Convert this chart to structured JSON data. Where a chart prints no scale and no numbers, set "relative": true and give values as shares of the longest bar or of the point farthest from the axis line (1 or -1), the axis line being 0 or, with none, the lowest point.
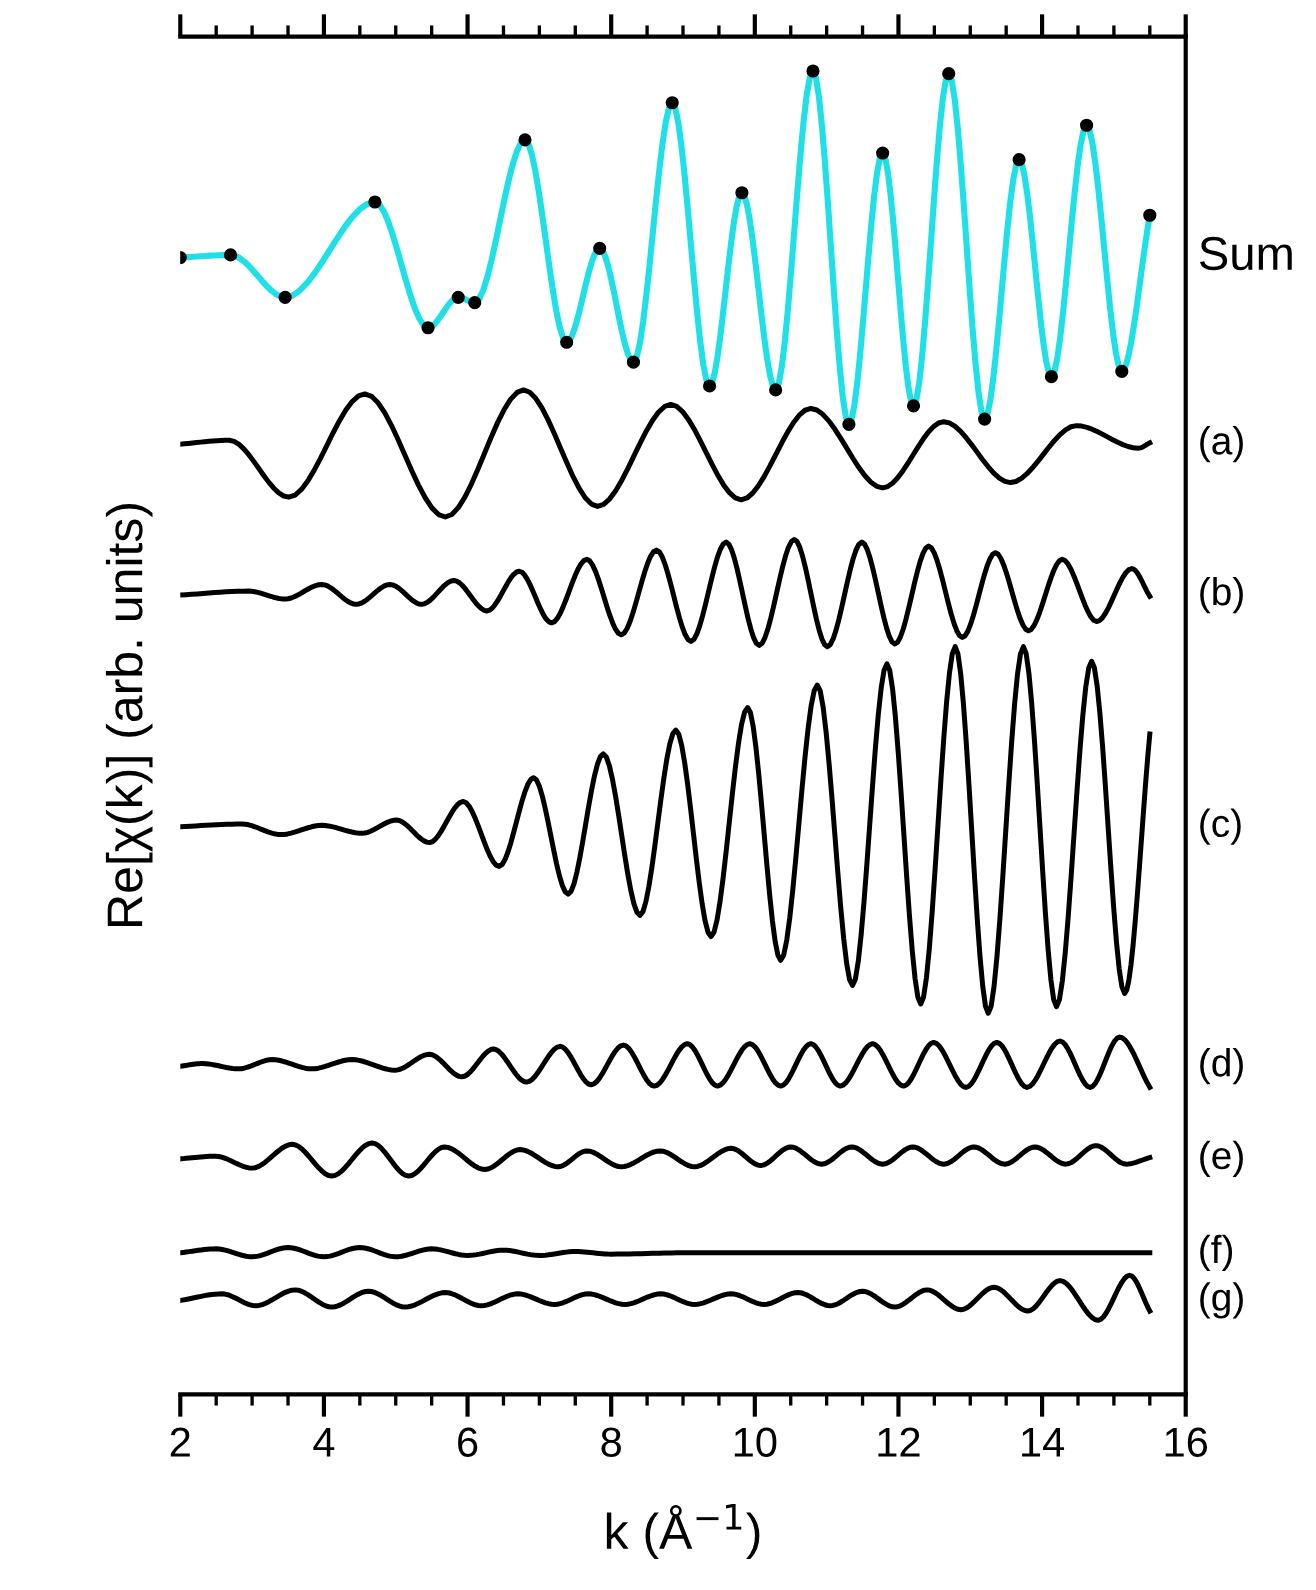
{
  "chart_data": {
    "type": "line",
    "relative": true,
    "xlabel": "k (Å$^{−1}$)",
    "ylabel": "Re[χ(k)] (arb. units)",
    "xlim": [
      2,
      16
    ],
    "xticks": [
      2,
      4,
      6,
      8,
      10,
      12,
      14,
      16
    ],
    "grid": false,
    "legend": false,
    "line_style": "solid",
    "series": [
      {
        "color": "#1fe0e6",
        "x": [
          2.0,
          2.7,
          3.46,
          4.71,
          5.45,
          5.87,
          6.1,
          6.8,
          7.38,
          7.84,
          8.31,
          8.85,
          9.37,
          9.82,
          10.29,
          10.81,
          11.31,
          11.78,
          12.21,
          12.7,
          13.2,
          13.68,
          14.13,
          14.62,
          15.11,
          15.5
        ],
        "values": [
          0.859,
          0.861,
          0.829,
          0.901,
          0.806,
          0.829,
          0.825,
          0.948,
          0.795,
          0.866,
          0.78,
          0.976,
          0.762,
          0.908,
          0.759,
          1.0,
          0.733,
          0.938,
          0.747,
          0.998,
          0.737,
          0.933,
          0.769,
          0.959,
          0.773,
          0.891
        ]
      },
      {
        "type": "scatter",
        "name": "Sum",
        "color": "#000000",
        "marker": "circle",
        "x": [
          2.0,
          2.7,
          3.46,
          4.71,
          5.45,
          5.87,
          6.1,
          6.8,
          7.38,
          7.84,
          8.31,
          8.85,
          9.37,
          9.82,
          10.29,
          10.81,
          11.31,
          11.78,
          12.21,
          12.7,
          13.2,
          13.68,
          14.13,
          14.62,
          15.11,
          15.5
        ],
        "values": [
          0.859,
          0.861,
          0.829,
          0.901,
          0.806,
          0.829,
          0.825,
          0.948,
          0.795,
          0.866,
          0.78,
          0.976,
          0.762,
          0.908,
          0.759,
          1.0,
          0.733,
          0.938,
          0.747,
          0.998,
          0.737,
          0.933,
          0.769,
          0.959,
          0.773,
          0.891
        ]
      },
      {
        "name": "(a)",
        "color": "#000000",
        "x": [
          2.0,
          2.68,
          3.51,
          4.57,
          5.69,
          6.78,
          7.81,
          8.83,
          9.81,
          10.78,
          11.78,
          12.63,
          13.56,
          14.48,
          15.34,
          15.5
        ],
        "values": [
          0.718,
          0.721,
          0.678,
          0.756,
          0.663,
          0.759,
          0.671,
          0.748,
          0.676,
          0.745,
          0.685,
          0.735,
          0.689,
          0.732,
          0.715,
          0.719
        ]
      },
      {
        "name": "(b)",
        "color": "#000000",
        "x": [
          2.0,
          2.95,
          3.46,
          3.97,
          4.45,
          4.92,
          5.36,
          5.81,
          6.27,
          6.72,
          7.17,
          7.66,
          8.14,
          8.63,
          9.11,
          9.6,
          10.06,
          10.55,
          11.01,
          11.49,
          11.95,
          12.42,
          12.89,
          13.35,
          13.81,
          14.28,
          14.76,
          15.25,
          15.5
        ],
        "values": [
          0.604,
          0.607,
          0.601,
          0.612,
          0.597,
          0.612,
          0.597,
          0.615,
          0.592,
          0.622,
          0.583,
          0.631,
          0.574,
          0.638,
          0.569,
          0.644,
          0.566,
          0.646,
          0.565,
          0.644,
          0.567,
          0.641,
          0.572,
          0.636,
          0.577,
          0.631,
          0.584,
          0.624,
          0.603
        ]
      },
      {
        "name": "(c)",
        "color": "#000000",
        "x": [
          2.0,
          2.86,
          3.4,
          3.97,
          4.53,
          5.01,
          5.47,
          5.94,
          6.44,
          6.92,
          7.4,
          7.89,
          8.4,
          8.9,
          9.39,
          9.9,
          10.36,
          10.87,
          11.36,
          11.84,
          12.31,
          12.79,
          13.25,
          13.74,
          14.2,
          14.69,
          15.15,
          15.5
        ],
        "values": [
          0.429,
          0.431,
          0.423,
          0.43,
          0.424,
          0.434,
          0.417,
          0.448,
          0.399,
          0.466,
          0.378,
          0.484,
          0.362,
          0.502,
          0.346,
          0.519,
          0.328,
          0.536,
          0.309,
          0.552,
          0.295,
          0.565,
          0.288,
          0.565,
          0.293,
          0.554,
          0.303,
          0.499
        ]
      },
      {
        "name": "(d)",
        "color": "#000000",
        "x": [
          2.0,
          2.31,
          2.81,
          3.28,
          3.83,
          4.39,
          4.99,
          5.47,
          5.92,
          6.36,
          6.82,
          7.29,
          7.72,
          8.17,
          8.6,
          9.06,
          9.48,
          9.93,
          10.36,
          10.78,
          11.19,
          11.64,
          12.07,
          12.49,
          12.94,
          13.37,
          13.79,
          14.25,
          14.67,
          15.08,
          15.5
        ],
        "values": [
          0.248,
          0.25,
          0.246,
          0.253,
          0.246,
          0.253,
          0.245,
          0.257,
          0.24,
          0.261,
          0.236,
          0.263,
          0.234,
          0.264,
          0.233,
          0.265,
          0.233,
          0.265,
          0.233,
          0.265,
          0.233,
          0.265,
          0.233,
          0.266,
          0.232,
          0.266,
          0.232,
          0.267,
          0.232,
          0.27,
          0.232
        ]
      },
      {
        "name": "(e)",
        "color": "#000000",
        "x": [
          2.0,
          2.49,
          3.0,
          3.56,
          4.11,
          4.67,
          5.18,
          5.68,
          6.24,
          6.73,
          7.26,
          7.66,
          8.14,
          8.68,
          9.16,
          9.67,
          10.08,
          10.5,
          10.93,
          11.35,
          11.78,
          12.2,
          12.63,
          13.05,
          13.48,
          13.9,
          14.33,
          14.75,
          15.17,
          15.5
        ],
        "values": [
          0.178,
          0.18,
          0.171,
          0.189,
          0.165,
          0.19,
          0.165,
          0.187,
          0.17,
          0.185,
          0.172,
          0.184,
          0.172,
          0.184,
          0.172,
          0.186,
          0.173,
          0.187,
          0.174,
          0.187,
          0.174,
          0.187,
          0.174,
          0.187,
          0.174,
          0.187,
          0.174,
          0.188,
          0.174,
          0.179
        ]
      },
      {
        "name": "(f)",
        "color": "#000000",
        "x": [
          2.0,
          2.5,
          3.0,
          3.5,
          4.0,
          4.5,
          5.0,
          5.5,
          6.0,
          6.5,
          7.0,
          7.5,
          8.0,
          9.0,
          10.0,
          11.0,
          12.0,
          13.0,
          14.0,
          15.5
        ],
        "values": [
          0.107,
          0.11,
          0.104,
          0.111,
          0.104,
          0.111,
          0.104,
          0.11,
          0.105,
          0.109,
          0.105,
          0.108,
          0.106,
          0.107,
          0.107,
          0.107,
          0.107,
          0.107,
          0.107,
          0.107
        ]
      },
      {
        "name": "(g)",
        "color": "#000000",
        "x": [
          2.0,
          2.58,
          3.05,
          3.6,
          4.11,
          4.62,
          5.13,
          5.69,
          6.19,
          6.7,
          7.21,
          7.68,
          8.19,
          8.69,
          9.16,
          9.67,
          10.13,
          10.6,
          11.05,
          11.5,
          11.95,
          12.4,
          12.87,
          13.33,
          13.8,
          14.25,
          14.78,
          15.22,
          15.5
        ],
        "values": [
          0.071,
          0.076,
          0.067,
          0.079,
          0.066,
          0.078,
          0.066,
          0.077,
          0.067,
          0.076,
          0.068,
          0.076,
          0.068,
          0.076,
          0.068,
          0.076,
          0.068,
          0.077,
          0.067,
          0.078,
          0.066,
          0.079,
          0.064,
          0.081,
          0.063,
          0.086,
          0.056,
          0.09,
          0.063
        ]
      }
    ]
  }
}
